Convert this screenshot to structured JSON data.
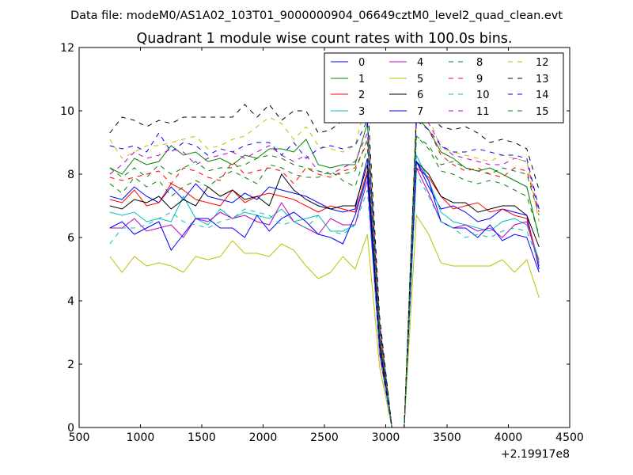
{
  "suptitle": "Data file: modeM0/AS1A02_103T01_9000000904_06649cztM0_level2_quad_clean.evt",
  "chart_data": {
    "type": "line",
    "title": "Quadrant 1 module wise count rates with 100.0s bins.",
    "xlabel": "",
    "ylabel": "",
    "x_offset_label": "+2.19917e8",
    "xlim": [
      500,
      4500
    ],
    "ylim": [
      0,
      12
    ],
    "xticks": [
      500,
      1000,
      1500,
      2000,
      2500,
      3000,
      3500,
      4000,
      4500
    ],
    "yticks": [
      0,
      2,
      4,
      6,
      8,
      10,
      12
    ],
    "grid": false,
    "legend": {
      "position": "top-right",
      "columns": 4
    },
    "x": [
      750,
      850,
      950,
      1050,
      1150,
      1250,
      1350,
      1450,
      1550,
      1650,
      1750,
      1850,
      1950,
      2050,
      2150,
      2250,
      2350,
      2450,
      2550,
      2650,
      2750,
      2850,
      2950,
      3050,
      3150,
      3250,
      3350,
      3450,
      3550,
      3650,
      3750,
      3850,
      3950,
      4050,
      4150,
      4250
    ],
    "series": [
      {
        "name": "0",
        "color": "#0000ff",
        "dash": "solid",
        "values": [
          7.3,
          7.2,
          7.6,
          7.3,
          7.1,
          7.6,
          7.2,
          7.7,
          7.3,
          7.2,
          7.1,
          7.4,
          7.2,
          7.6,
          7.5,
          7.4,
          7.3,
          7.1,
          6.9,
          6.8,
          6.9,
          8.5,
          2.8,
          0,
          0,
          8.4,
          7.6,
          6.9,
          7.0,
          6.8,
          6.5,
          6.6,
          6.9,
          6.8,
          6.7,
          5.0
        ]
      },
      {
        "name": "1",
        "color": "#008000",
        "dash": "solid",
        "values": [
          8.2,
          8.0,
          8.5,
          8.3,
          8.4,
          8.9,
          8.6,
          8.7,
          8.4,
          8.5,
          8.3,
          8.6,
          8.5,
          8.8,
          8.8,
          8.7,
          9.1,
          8.3,
          8.2,
          8.3,
          8.3,
          9.6,
          3.2,
          0,
          0,
          9.8,
          9.4,
          8.7,
          8.5,
          8.2,
          8.1,
          8.2,
          8.0,
          7.8,
          7.6,
          6.0
        ]
      },
      {
        "name": "2",
        "color": "#ff0000",
        "dash": "solid",
        "values": [
          7.2,
          7.1,
          7.5,
          7.0,
          7.1,
          7.7,
          7.5,
          7.2,
          7.1,
          7.0,
          7.5,
          7.1,
          7.3,
          7.4,
          7.3,
          7.2,
          7.0,
          6.8,
          7.0,
          6.9,
          6.8,
          8.1,
          2.7,
          0,
          0,
          8.2,
          7.9,
          7.3,
          6.9,
          7.0,
          7.1,
          6.8,
          6.9,
          6.7,
          6.6,
          5.2
        ]
      },
      {
        "name": "3",
        "color": "#00bfbf",
        "dash": "solid",
        "values": [
          6.8,
          6.7,
          6.8,
          6.5,
          6.6,
          6.5,
          7.3,
          6.6,
          6.4,
          6.9,
          6.6,
          6.8,
          6.7,
          6.6,
          6.9,
          6.5,
          6.6,
          6.7,
          6.2,
          6.2,
          6.4,
          8.0,
          2.5,
          0,
          0,
          8.6,
          7.8,
          6.8,
          6.5,
          6.4,
          6.3,
          6.2,
          6.5,
          6.6,
          6.4,
          5.3
        ]
      },
      {
        "name": "4",
        "color": "#bf00bf",
        "dash": "solid",
        "values": [
          6.3,
          6.3,
          6.6,
          6.2,
          6.3,
          6.4,
          6.0,
          6.6,
          6.5,
          6.8,
          6.6,
          6.7,
          6.5,
          6.4,
          7.1,
          6.5,
          6.3,
          6.1,
          6.6,
          6.4,
          6.4,
          7.8,
          2.3,
          0,
          0,
          8.2,
          7.4,
          6.5,
          6.3,
          6.4,
          6.2,
          6.3,
          6.0,
          6.4,
          6.5,
          5.1
        ]
      },
      {
        "name": "5",
        "color": "#bfbf00",
        "dash": "solid",
        "values": [
          5.4,
          4.9,
          5.4,
          5.1,
          5.2,
          5.1,
          4.9,
          5.4,
          5.3,
          5.4,
          5.9,
          5.5,
          5.5,
          5.4,
          5.8,
          5.6,
          5.1,
          4.7,
          4.9,
          5.4,
          5.0,
          6.1,
          1.9,
          0,
          0,
          6.7,
          6.1,
          5.2,
          5.1,
          5.1,
          5.1,
          5.1,
          5.3,
          4.9,
          5.3,
          4.1
        ]
      },
      {
        "name": "6",
        "color": "#000000",
        "dash": "solid",
        "values": [
          7.0,
          6.9,
          7.2,
          7.1,
          7.3,
          6.9,
          7.2,
          7.0,
          7.6,
          7.3,
          7.5,
          7.2,
          7.3,
          7.0,
          8.0,
          7.5,
          7.2,
          7.0,
          6.9,
          7.0,
          7.0,
          8.3,
          2.6,
          0,
          0,
          8.4,
          8.0,
          7.3,
          7.1,
          7.1,
          6.8,
          6.9,
          7.0,
          7.0,
          6.7,
          5.7
        ]
      },
      {
        "name": "7",
        "color": "#0000ff",
        "dash": "solid",
        "values": [
          6.3,
          6.5,
          6.1,
          6.3,
          6.5,
          5.6,
          6.1,
          6.6,
          6.6,
          6.3,
          6.3,
          6.0,
          6.7,
          6.2,
          6.6,
          6.8,
          6.5,
          6.1,
          6.0,
          5.8,
          6.7,
          8.0,
          2.4,
          0,
          0,
          8.4,
          7.8,
          6.5,
          6.3,
          6.3,
          6.0,
          6.4,
          5.9,
          6.1,
          6.0,
          4.9
        ]
      },
      {
        "name": "8",
        "color": "#008000",
        "dash": "dashed",
        "values": [
          7.7,
          7.4,
          7.9,
          7.6,
          7.8,
          7.3,
          7.6,
          7.8,
          7.6,
          7.9,
          8.1,
          7.9,
          7.7,
          8.3,
          8.2,
          8.0,
          7.9,
          7.9,
          8.1,
          7.8,
          7.6,
          8.8,
          2.9,
          0,
          0,
          9.2,
          8.8,
          8.1,
          8.0,
          7.8,
          7.7,
          7.8,
          7.7,
          7.5,
          7.3,
          6.1
        ]
      },
      {
        "name": "9",
        "color": "#ff0000",
        "dash": "dashed",
        "values": [
          7.9,
          7.8,
          7.9,
          8.0,
          8.1,
          7.7,
          8.2,
          8.1,
          7.9,
          7.8,
          8.4,
          8.0,
          8.1,
          8.2,
          8.1,
          7.7,
          8.2,
          8.0,
          7.9,
          8.1,
          8.2,
          9.0,
          3.1,
          0,
          0,
          9.7,
          9.4,
          8.6,
          8.3,
          8.1,
          8.2,
          8.0,
          7.9,
          8.2,
          8.1,
          6.8
        ]
      },
      {
        "name": "10",
        "color": "#00bfbf",
        "dash": "dashed",
        "values": [
          5.8,
          6.3,
          6.3,
          6.4,
          6.6,
          6.8,
          6.5,
          6.4,
          6.3,
          6.5,
          6.6,
          6.9,
          6.8,
          6.7,
          6.4,
          6.5,
          6.3,
          6.7,
          6.2,
          6.1,
          6.4,
          7.5,
          2.4,
          0,
          0,
          8.0,
          7.3,
          6.5,
          6.3,
          6.0,
          6.1,
          6.0,
          6.2,
          6.3,
          6.2,
          5.2
        ]
      },
      {
        "name": "11",
        "color": "#bf00bf",
        "dash": "dashed",
        "values": [
          8.0,
          8.3,
          8.7,
          8.5,
          8.6,
          8.8,
          8.7,
          8.3,
          8.5,
          8.6,
          8.7,
          8.5,
          8.7,
          8.9,
          8.6,
          8.4,
          8.6,
          8.1,
          8.0,
          8.2,
          8.4,
          9.3,
          3.2,
          0,
          0,
          10.0,
          9.6,
          8.9,
          8.6,
          8.5,
          8.4,
          8.3,
          8.3,
          8.5,
          8.4,
          6.8
        ]
      },
      {
        "name": "12",
        "color": "#bfbf00",
        "dash": "dashed",
        "values": [
          9.1,
          8.5,
          8.7,
          8.9,
          8.9,
          9.0,
          9.1,
          9.2,
          8.8,
          8.9,
          9.1,
          9.2,
          9.5,
          9.8,
          9.6,
          9.1,
          9.5,
          8.9,
          8.8,
          8.7,
          8.9,
          10.4,
          3.4,
          0,
          0,
          10.2,
          9.8,
          8.8,
          8.7,
          8.6,
          8.5,
          8.4,
          8.6,
          8.5,
          8.4,
          6.5
        ]
      },
      {
        "name": "13",
        "color": "#000000",
        "dash": "dashed",
        "values": [
          9.3,
          9.8,
          9.7,
          9.5,
          9.7,
          9.6,
          9.8,
          9.8,
          9.8,
          9.8,
          9.8,
          10.2,
          9.8,
          10.2,
          9.7,
          10.0,
          10.0,
          9.3,
          9.4,
          9.7,
          9.9,
          10.4,
          3.5,
          0,
          0,
          9.9,
          9.9,
          9.5,
          9.4,
          9.5,
          9.3,
          9.0,
          9.1,
          9.0,
          8.8,
          7.5
        ]
      },
      {
        "name": "14",
        "color": "#0000ff",
        "dash": "dashed",
        "values": [
          8.9,
          8.8,
          8.9,
          8.7,
          9.3,
          8.7,
          9.0,
          8.9,
          8.6,
          8.8,
          8.7,
          8.9,
          9.0,
          9.0,
          8.6,
          9.0,
          8.5,
          8.8,
          8.9,
          8.8,
          8.9,
          9.7,
          3.3,
          0,
          0,
          9.7,
          9.4,
          8.9,
          8.7,
          8.7,
          8.8,
          8.7,
          8.6,
          8.6,
          8.5,
          6.9
        ]
      },
      {
        "name": "15",
        "color": "#008000",
        "dash": "dashed",
        "values": [
          8.2,
          7.9,
          8.2,
          7.9,
          8.3,
          8.0,
          8.2,
          8.4,
          8.1,
          8.2,
          8.2,
          8.3,
          8.5,
          8.6,
          8.5,
          8.3,
          8.2,
          8.1,
          8.0,
          8.0,
          8.1,
          9.1,
          3.0,
          0,
          0,
          9.2,
          8.9,
          8.3,
          8.4,
          8.2,
          8.1,
          8.0,
          8.2,
          8.1,
          8.0,
          6.7
        ]
      }
    ]
  }
}
